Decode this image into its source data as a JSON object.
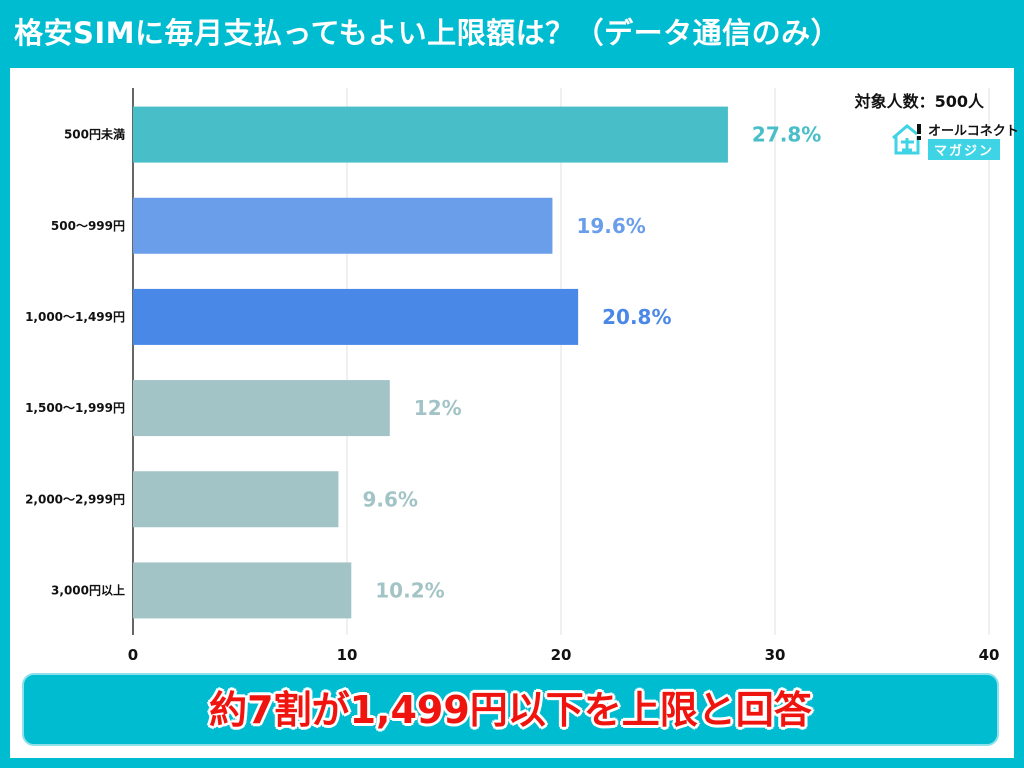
{
  "title": "格安SIMに毎月支払ってもよい上限額は？（データ通信のみ）",
  "sample_size": "対象人数：500人",
  "logo": {
    "top": "オールコネクト",
    "bottom": "マガジン"
  },
  "summary": "約7割が1,499円以下を上限と回答",
  "chart_data": {
    "type": "bar",
    "orientation": "horizontal",
    "categories": [
      "500円未満",
      "500〜999円",
      "1,000〜1,499円",
      "1,500〜1,999円",
      "2,000〜2,999円",
      "3,000円以上"
    ],
    "values": [
      27.8,
      19.6,
      20.8,
      12,
      9.6,
      10.2
    ],
    "data_labels": [
      "27.8%",
      "19.6%",
      "20.8%",
      "12%",
      "9.6%",
      "10.2%"
    ],
    "colors": [
      "#48bec8",
      "#6b9eea",
      "#4a88e8",
      "#a3c4c6",
      "#a3c4c6",
      "#a3c4c6"
    ],
    "xlim": [
      0,
      40
    ],
    "x_ticks": [
      "0",
      "10",
      "20",
      "30",
      "40"
    ],
    "grid": true,
    "xlabel": "",
    "ylabel": ""
  }
}
